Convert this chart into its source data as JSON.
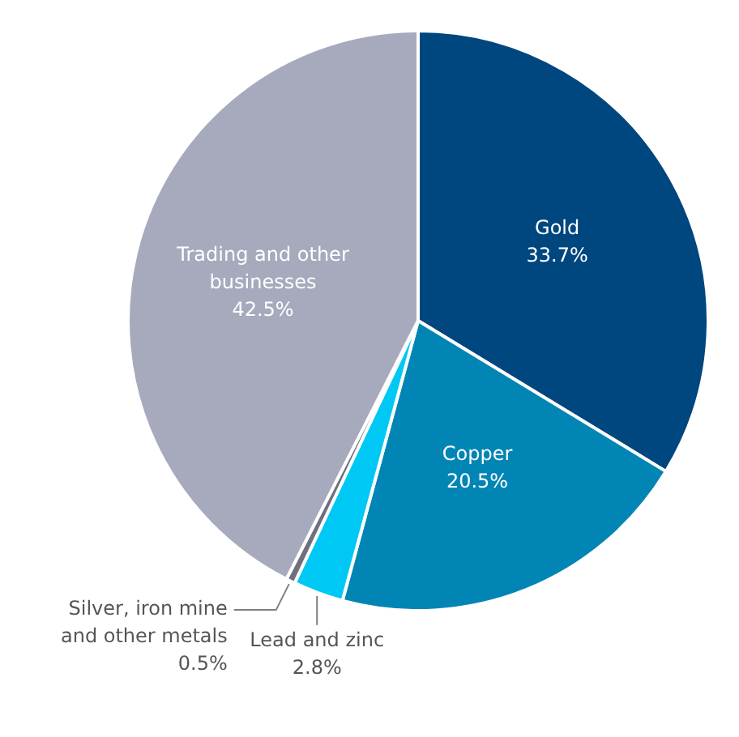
{
  "chart_data": {
    "type": "pie",
    "categories": [
      "Gold",
      "Copper",
      "Lead and zinc",
      "Silver, iron mine and other metals",
      "Trading and other businesses"
    ],
    "values": [
      33.7,
      20.5,
      2.8,
      0.5,
      42.5
    ],
    "colors": [
      "#00467f",
      "#0085b5",
      "#00c8f5",
      "#6e7080",
      "#a7aabd"
    ],
    "value_labels": [
      "33.7%",
      "20.5%",
      "2.8%",
      "0.5%",
      "42.5%"
    ],
    "legend": false
  }
}
